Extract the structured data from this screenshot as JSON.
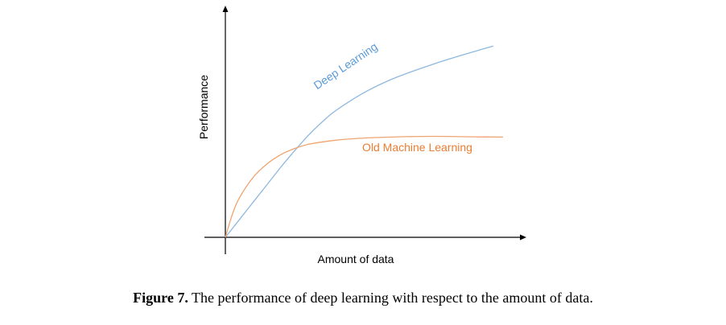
{
  "chart_data": {
    "type": "line",
    "title": "",
    "xlabel": "Amount of data",
    "ylabel": "Performance",
    "xlim": [
      0,
      10
    ],
    "ylim": [
      0,
      10
    ],
    "grid": false,
    "legend": "none",
    "series": [
      {
        "name": "Deep Learning",
        "color": "#8db8df",
        "x": [
          0,
          0.5,
          1,
          1.5,
          2,
          2.5,
          3,
          3.5,
          4,
          5,
          6,
          7,
          8,
          9,
          9.65
        ],
        "y": [
          0,
          0.85,
          1.7,
          2.55,
          3.4,
          4.2,
          4.95,
          5.6,
          6.15,
          7.0,
          7.65,
          8.15,
          8.6,
          9.0,
          9.25
        ]
      },
      {
        "name": "Old Machine Learning",
        "color": "#f0a36d",
        "x": [
          0,
          0.25,
          0.5,
          1,
          1.5,
          2,
          2.5,
          3,
          4,
          5,
          6,
          7,
          8,
          9,
          10
        ],
        "y": [
          0,
          1.1,
          1.9,
          2.9,
          3.55,
          4.0,
          4.3,
          4.5,
          4.7,
          4.8,
          4.85,
          4.88,
          4.88,
          4.86,
          4.85
        ]
      }
    ]
  },
  "caption": {
    "label": "Figure 7.",
    "text": " The performance of deep learning with respect to the amount of data."
  }
}
